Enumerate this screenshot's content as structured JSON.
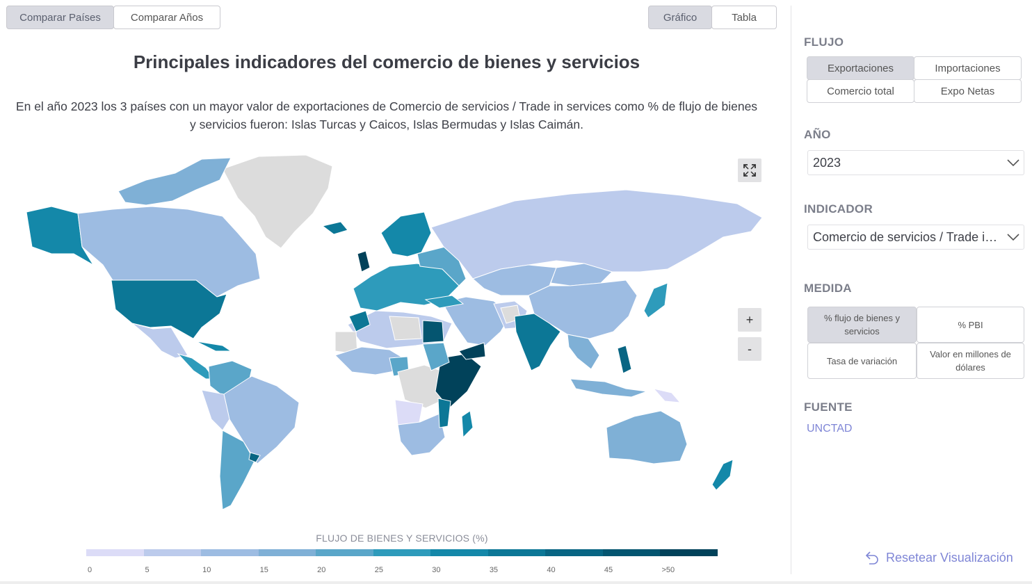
{
  "top_tabs": {
    "compare_countries": "Comparar Países",
    "compare_years": "Comparar Años"
  },
  "view_tabs": {
    "chart": "Gráfico",
    "table": "Tabla"
  },
  "title": "Principales indicadores del comercio de bienes y servicios",
  "subtitle": "En el año 2023 los 3 países con un mayor valor de exportaciones de Comercio de servicios / Trade in services como % de flujo de bienes y servicios fueron: Islas Turcas y Caicos, Islas Bermudas y Islas Caimán.",
  "map": {
    "zoom_in": "+",
    "zoom_out": "-",
    "no_data_color": "#dcdcdc",
    "legend_title": "FLUJO DE BIENES Y SERVICIOS (%)",
    "legend_colors": [
      "#dcdcf7",
      "#bccbec",
      "#9dbce2",
      "#7fb0d6",
      "#5aa6c9",
      "#2e9bbb",
      "#1488a9",
      "#0c7796",
      "#086583",
      "#045570",
      "#01425a"
    ],
    "legend_ticks": [
      "0",
      "5",
      "10",
      "15",
      "20",
      "25",
      "30",
      "35",
      "40",
      "45",
      ">50"
    ]
  },
  "sidebar": {
    "flujo": {
      "label": "FLUJO",
      "options": [
        "Exportaciones",
        "Importaciones",
        "Comercio total",
        "Expo Netas"
      ],
      "selected": "Exportaciones"
    },
    "anio": {
      "label": "AÑO",
      "value": "2023"
    },
    "indicador": {
      "label": "INDICADOR",
      "value": "Comercio de servicios / Trade in services"
    },
    "medida": {
      "label": "MEDIDA",
      "options": [
        "% flujo de bienes y servicios",
        "% PBI",
        "Tasa de variación",
        "Valor en millones de dólares"
      ],
      "selected": "% flujo de bienes y servicios"
    },
    "fuente": {
      "label": "FUENTE",
      "value": "UNCTAD"
    },
    "reset_label": "Resetear Visualización"
  }
}
